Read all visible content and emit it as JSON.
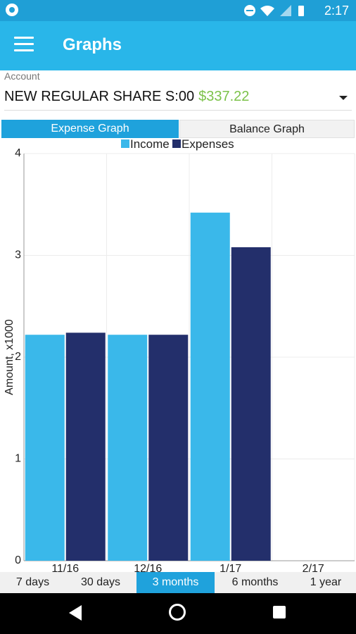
{
  "status_bar": {
    "time": "2:17"
  },
  "app_bar": {
    "title": "Graphs"
  },
  "account": {
    "label": "Account",
    "name": "NEW REGULAR SHARE S:00",
    "balance": "$337.22",
    "balance_color": "#7cc24a"
  },
  "tabs": [
    {
      "label": "Expense Graph",
      "active": true
    },
    {
      "label": "Balance Graph",
      "active": false
    }
  ],
  "periods": [
    {
      "label": "7 days",
      "active": false
    },
    {
      "label": "30 days",
      "active": false
    },
    {
      "label": "3 months",
      "active": true
    },
    {
      "label": "6 months",
      "active": false
    },
    {
      "label": "1 year",
      "active": false
    }
  ],
  "colors": {
    "status_bar": "#1f9fd6",
    "app_bar": "#29b6e9",
    "accent": "#1fa2dc",
    "income": "#3ab8ea",
    "expenses": "#232f6b"
  },
  "chart_data": {
    "type": "bar",
    "categories": [
      "11/16",
      "12/16",
      "1/17",
      "2/17"
    ],
    "series": [
      {
        "name": "Income",
        "values": [
          2.22,
          2.22,
          3.42,
          0
        ]
      },
      {
        "name": "Expenses",
        "values": [
          2.24,
          2.22,
          3.08,
          0
        ]
      }
    ],
    "ylabel": "Amount, x1000",
    "ylim": [
      0,
      4
    ],
    "yticks": [
      0,
      1,
      2,
      3,
      4
    ],
    "grid": true,
    "legend": "top"
  }
}
